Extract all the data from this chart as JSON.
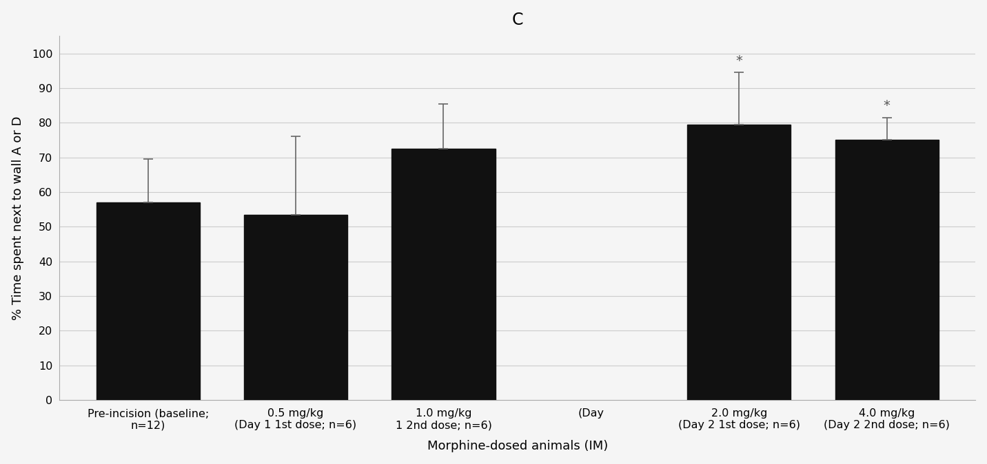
{
  "title": "C",
  "xlabel": "Morphine-dosed animals (IM)",
  "ylabel": "% Time spent next to wall A or D",
  "categories_line1": [
    "Pre-incision (baseline;",
    "0.5 mg/kg",
    "1.0 mg/kg",
    "(Day",
    "2.0 mg/kg",
    "4.0 mg/kg"
  ],
  "categories_line2": [
    "n=12)",
    "(Day 1 1st dose; n=6)",
    "1 2nd dose; n=6)",
    "",
    "(Day 2 1st dose; n=6)",
    "(Day 2 2nd dose; n=6)"
  ],
  "bar_positions": [
    0,
    1,
    2,
    4,
    5
  ],
  "tick_positions": [
    0,
    1,
    2,
    3,
    4,
    5
  ],
  "values": [
    57.0,
    53.5,
    72.5,
    79.5,
    75.0
  ],
  "errors": [
    12.5,
    22.5,
    13.0,
    15.0,
    6.5
  ],
  "bar_color": "#111111",
  "background_color": "#f5f5f5",
  "ylim": [
    0,
    105
  ],
  "yticks": [
    0,
    10,
    20,
    30,
    40,
    50,
    60,
    70,
    80,
    90,
    100
  ],
  "significance": [
    false,
    false,
    false,
    true,
    true
  ],
  "title_fontsize": 17,
  "axis_label_fontsize": 13,
  "tick_fontsize": 11.5,
  "bar_width": 0.7
}
